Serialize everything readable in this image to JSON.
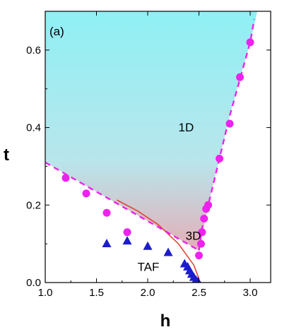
{
  "chart_data": {
    "type": "scatter",
    "panel_label": "(a)",
    "xlabel": "h",
    "ylabel": "t",
    "xlim": [
      1.0,
      3.2
    ],
    "ylim": [
      0.0,
      0.7
    ],
    "x_ticks": [
      "1.0",
      "1.5",
      "2.0",
      "2.5",
      "3.0"
    ],
    "y_ticks": [
      "0.0",
      "0.2",
      "0.4",
      "0.6"
    ],
    "grid": false,
    "annotations": [
      {
        "text": "1D",
        "x": 2.3,
        "y": 0.39
      },
      {
        "text": "3D",
        "x": 2.37,
        "y": 0.11
      },
      {
        "text": "TAF",
        "x": 1.9,
        "y": 0.03
      }
    ],
    "series": [
      {
        "marker": "circle",
        "color": "#ee22ee",
        "points": [
          [
            1.2,
            0.27
          ],
          [
            1.4,
            0.23
          ],
          [
            1.6,
            0.18
          ],
          [
            1.8,
            0.13
          ],
          [
            2.5,
            0.07
          ],
          [
            2.52,
            0.1
          ],
          [
            2.53,
            0.13
          ],
          [
            2.55,
            0.165
          ],
          [
            2.57,
            0.19
          ],
          [
            2.59,
            0.2
          ],
          [
            2.7,
            0.32
          ],
          [
            2.8,
            0.41
          ],
          [
            2.9,
            0.53
          ],
          [
            3.0,
            0.62
          ]
        ]
      },
      {
        "marker": "triangle",
        "color": "#1c1ccc",
        "points": [
          [
            1.6,
            0.1
          ],
          [
            1.8,
            0.107
          ],
          [
            2.0,
            0.093
          ],
          [
            2.2,
            0.077
          ],
          [
            2.36,
            0.048
          ],
          [
            2.39,
            0.04
          ],
          [
            2.41,
            0.03
          ],
          [
            2.43,
            0.021
          ],
          [
            2.45,
            0.013
          ],
          [
            2.47,
            0.006
          ],
          [
            2.49,
            0.002
          ]
        ]
      }
    ],
    "dashed_boundaries": [
      {
        "color": "#ee22ee",
        "points": [
          [
            1.0,
            0.31
          ],
          [
            2.5,
            0.083
          ]
        ]
      },
      {
        "color": "#ee22ee",
        "points": [
          [
            2.5,
            0.083
          ],
          [
            2.53,
            0.14
          ],
          [
            2.6,
            0.21
          ],
          [
            2.8,
            0.43
          ],
          [
            3.0,
            0.62
          ],
          [
            3.04,
            0.68
          ]
        ]
      }
    ],
    "crossover_line": {
      "color": "#e03a2a",
      "points": [
        [
          1.7,
          0.213
        ],
        [
          1.9,
          0.185
        ],
        [
          2.1,
          0.15
        ],
        [
          2.3,
          0.1
        ],
        [
          2.45,
          0.045
        ],
        [
          2.5,
          0.01
        ]
      ]
    },
    "shaded_region": {
      "top_color": "#8ff0f4",
      "bottom_color": "#f49aa4",
      "boundary": [
        [
          1.0,
          0.31
        ],
        [
          2.5,
          0.083
        ],
        [
          2.6,
          0.21
        ],
        [
          2.8,
          0.43
        ],
        [
          3.0,
          0.62
        ],
        [
          3.07,
          0.7
        ],
        [
          1.0,
          0.7
        ]
      ]
    },
    "blue_dense_curve": {
      "color": "#1a1ab8",
      "points": [
        [
          2.36,
          0.048
        ],
        [
          2.43,
          0.024
        ],
        [
          2.47,
          0.01
        ],
        [
          2.5,
          0.0
        ],
        [
          2.52,
          0.0
        ]
      ]
    }
  }
}
